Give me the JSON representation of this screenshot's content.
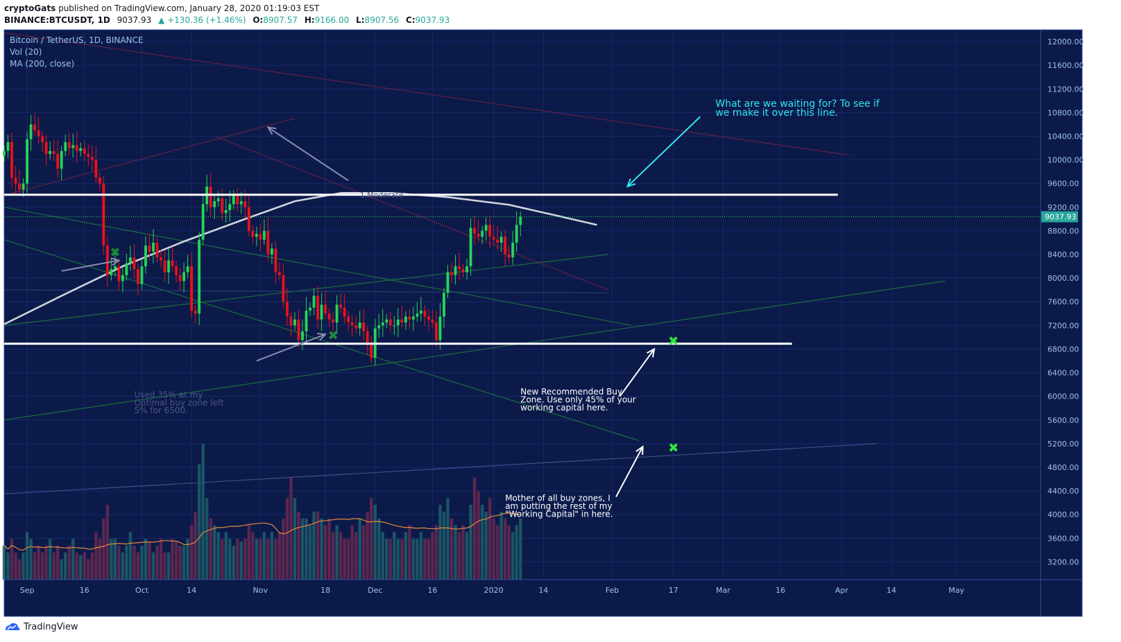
{
  "header": {
    "author": "cryptoGats",
    "published": "published on TradingView.com, January 28, 2020 01:19:03 EST",
    "symbol": "BINANCE:BTCUSDT, 1D",
    "last": "9037.93",
    "change": "▲ +130.36 (+1.46%)",
    "o_label": "O:",
    "o_value": "8907.57",
    "h_label": "H:",
    "h_value": "9166.00",
    "l_label": "L:",
    "l_value": "8907.56",
    "c_label": "C:",
    "c_value": "9037.93"
  },
  "legend": {
    "main": "Bitcoin / TetherUS, 1D, BINANCE",
    "vol": "Vol (20)",
    "ma": "MA (200, close)"
  },
  "footer": {
    "brand": "TradingView"
  },
  "colors": {
    "background": "#0c1a4a",
    "up": "#26d458",
    "down": "#e8121c",
    "white_line": "#ffffff",
    "ma": "#d0d4dc",
    "vol_ma": "#e88a3a",
    "cyan": "#33e6ee",
    "green_x": "#2ee83a",
    "axis_text": "#9ec2ee"
  },
  "chart_data": {
    "type": "candlestick",
    "y_axis": {
      "min": 2900,
      "max": 12200,
      "ticks": [
        3200,
        3600,
        4000,
        4400,
        4800,
        5200,
        5600,
        6000,
        6400,
        6800,
        7200,
        7600,
        8000,
        8400,
        8800,
        9200,
        9600,
        10000,
        10400,
        10800,
        11200,
        11600,
        12000
      ]
    },
    "x_axis": {
      "date_min": "2019-08-26",
      "date_max": "2020-05-23",
      "ticks": [
        {
          "label": "Sep",
          "date": "2019-09-01"
        },
        {
          "label": "16",
          "date": "2019-09-16"
        },
        {
          "label": "Oct",
          "date": "2019-10-01"
        },
        {
          "label": "14",
          "date": "2019-10-14"
        },
        {
          "label": "Nov",
          "date": "2019-11-01"
        },
        {
          "label": "18",
          "date": "2019-11-18"
        },
        {
          "label": "Dec",
          "date": "2019-12-01"
        },
        {
          "label": "16",
          "date": "2019-12-16"
        },
        {
          "label": "2020",
          "date": "2020-01-01"
        },
        {
          "label": "14",
          "date": "2020-01-14"
        },
        {
          "label": "Feb",
          "date": "2020-02-01"
        },
        {
          "label": "17",
          "date": "2020-02-17"
        },
        {
          "label": "Mar",
          "date": "2020-03-01"
        },
        {
          "label": "16",
          "date": "2020-03-16"
        },
        {
          "label": "Apr",
          "date": "2020-04-01"
        },
        {
          "label": "14",
          "date": "2020-04-14"
        },
        {
          "label": "May",
          "date": "2020-05-01"
        }
      ]
    },
    "last_price": 9037.93,
    "last_price_label": "9037.93",
    "series_start": "2019-08-26",
    "closes": [
      10150,
      10300,
      9700,
      9600,
      9500,
      9600,
      10350,
      10600,
      10500,
      10400,
      10300,
      10100,
      10150,
      10100,
      9850,
      10150,
      10300,
      10200,
      10250,
      10150,
      10200,
      10100,
      10050,
      10000,
      9700,
      9600,
      8550,
      8050,
      8150,
      8200,
      7950,
      8050,
      8250,
      8350,
      8150,
      7900,
      8200,
      8550,
      8450,
      8600,
      8350,
      8300,
      8100,
      8300,
      8200,
      8050,
      7950,
      8100,
      8200,
      7450,
      7400,
      8650,
      9250,
      9550,
      9200,
      9300,
      9350,
      9100,
      9150,
      9250,
      9400,
      9250,
      9300,
      9200,
      8800,
      8700,
      8750,
      8650,
      8800,
      8400,
      8500,
      8100,
      8050,
      7600,
      7350,
      7200,
      7300,
      6950,
      7100,
      7450,
      7500,
      7700,
      7300,
      7550,
      7400,
      7300,
      7250,
      7550,
      7500,
      7350,
      7250,
      7200,
      7150,
      7250,
      7100,
      6900,
      6650,
      7150,
      7200,
      7250,
      7300,
      7200,
      7200,
      7300,
      7250,
      7350,
      7300,
      7350,
      7400,
      7450,
      7350,
      7300,
      7250,
      6950,
      7350,
      7750,
      8100,
      8050,
      8200,
      8150,
      8100,
      8200,
      8850,
      8750,
      8700,
      8800,
      8900,
      8700,
      8650,
      8600,
      8700,
      8400,
      8350,
      8600,
      8900,
      9037.93
    ],
    "volume_relative": [
      0.25,
      0.2,
      0.3,
      0.2,
      0.15,
      0.2,
      0.35,
      0.3,
      0.2,
      0.25,
      0.2,
      0.25,
      0.3,
      0.2,
      0.25,
      0.15,
      0.2,
      0.25,
      0.3,
      0.2,
      0.18,
      0.2,
      0.15,
      0.2,
      0.35,
      0.3,
      0.45,
      0.55,
      0.3,
      0.3,
      0.25,
      0.2,
      0.25,
      0.35,
      0.25,
      0.2,
      0.25,
      0.3,
      0.28,
      0.2,
      0.25,
      0.3,
      0.2,
      0.2,
      0.3,
      0.28,
      0.25,
      0.25,
      0.3,
      0.4,
      0.5,
      0.85,
      1.0,
      0.6,
      0.45,
      0.4,
      0.35,
      0.3,
      0.35,
      0.3,
      0.25,
      0.3,
      0.28,
      0.3,
      0.4,
      0.35,
      0.3,
      0.3,
      0.35,
      0.3,
      0.35,
      0.3,
      0.35,
      0.45,
      0.6,
      0.75,
      0.6,
      0.5,
      0.45,
      0.45,
      0.4,
      0.5,
      0.5,
      0.45,
      0.4,
      0.45,
      0.35,
      0.4,
      0.35,
      0.3,
      0.3,
      0.4,
      0.35,
      0.45,
      0.4,
      0.5,
      0.6,
      0.55,
      0.45,
      0.35,
      0.3,
      0.3,
      0.35,
      0.3,
      0.3,
      0.35,
      0.4,
      0.3,
      0.3,
      0.35,
      0.3,
      0.3,
      0.35,
      0.4,
      0.55,
      0.5,
      0.6,
      0.45,
      0.4,
      0.35,
      0.4,
      0.35,
      0.55,
      0.75,
      0.65,
      0.55,
      0.5,
      0.6,
      0.45,
      0.4,
      0.5,
      0.45,
      0.4,
      0.35,
      0.4,
      0.45
    ],
    "ma200": [
      [
        "2019-08-26",
        7220
      ],
      [
        "2019-09-10",
        7700
      ],
      [
        "2019-09-26",
        8200
      ],
      [
        "2019-10-12",
        8620
      ],
      [
        "2019-10-28",
        9000
      ],
      [
        "2019-11-10",
        9300
      ],
      [
        "2019-11-22",
        9440
      ],
      [
        "2019-12-05",
        9440
      ],
      [
        "2019-12-20",
        9370
      ],
      [
        "2020-01-05",
        9240
      ],
      [
        "2020-01-18",
        9050
      ],
      [
        "2020-01-28",
        8900
      ]
    ],
    "horizontal_lines": [
      {
        "price": 9410,
        "from": "2019-08-26",
        "to": "2020-03-31"
      },
      {
        "price": 6890,
        "from": "2019-08-26",
        "to": "2020-03-19"
      }
    ],
    "trend_lines": [
      {
        "from": [
          "2019-08-26",
          7200
        ],
        "to": [
          "2020-01-31",
          8400
        ],
        "color": "#1f8a3a"
      },
      {
        "from": [
          "2019-08-26",
          5600
        ],
        "to": [
          "2020-04-28",
          7950
        ],
        "color": "#1f8a3a"
      },
      {
        "from": [
          "2019-08-26",
          4350
        ],
        "to": [
          "2020-04-10",
          5200
        ],
        "color": "#5060a0"
      },
      {
        "from": [
          "2019-08-26",
          8650
        ],
        "to": [
          "2020-02-08",
          5250
        ],
        "color": "#1f8a3a"
      },
      {
        "from": [
          "2019-08-26",
          9200
        ],
        "to": [
          "2020-02-06",
          7200
        ],
        "color": "#1f8a3a"
      },
      {
        "from": [
          "2019-08-26",
          12150
        ],
        "to": [
          "2020-04-03",
          10080
        ],
        "color": "#7a2440"
      },
      {
        "from": [
          "2019-08-26",
          9400
        ],
        "to": [
          "2019-11-10",
          10700
        ],
        "color": "#7a2440"
      },
      {
        "from": [
          "2019-10-20",
          10400
        ],
        "to": [
          "2020-01-31",
          7800
        ],
        "color": "#7a2440"
      },
      {
        "from": [
          "2019-08-26",
          7800
        ],
        "to": [
          "2020-01-31",
          7750
        ],
        "color": "#2a4a7a"
      }
    ],
    "arrows": [
      {
        "from": [
          "2019-09-10",
          8120
        ],
        "to": [
          "2019-09-25",
          8300
        ],
        "color": "#8890b0"
      },
      {
        "from": [
          "2019-10-31",
          6600
        ],
        "to": [
          "2019-11-18",
          7050
        ],
        "color": "#8890b0"
      },
      {
        "from": [
          "2019-11-24",
          9650
        ],
        "to": [
          "2019-11-03",
          10550
        ],
        "color": "#8890b0"
      },
      {
        "from": [
          "2020-02-24",
          10730
        ],
        "to": [
          "2020-02-05",
          9550
        ],
        "color": "#33e6ee"
      },
      {
        "from": [
          "2020-02-03",
          6000
        ],
        "to": [
          "2020-02-12",
          6800
        ],
        "color": "#ffffff"
      },
      {
        "from": [
          "2020-02-02",
          4300
        ],
        "to": [
          "2020-02-09",
          5150
        ],
        "color": "#ffffff"
      }
    ],
    "markers": [
      {
        "date": "2020-02-17",
        "price": 6930,
        "label": "✖",
        "color": "#2ee83a"
      },
      {
        "date": "2020-02-17",
        "price": 5120,
        "label": "✖",
        "color": "#2ee83a"
      },
      {
        "date": "2019-11-20",
        "price": 7020,
        "label": "✖",
        "color": "#1f8a3a"
      },
      {
        "date": "2019-09-24",
        "price": 8430,
        "label": "✖",
        "color": "#1f8a3a"
      }
    ],
    "annotations": [
      {
        "lines": [
          "What are we waiting for? To see if",
          "we make it over this line."
        ],
        "date": "2020-02-28",
        "price": 10900,
        "color": "#33e6ee",
        "size": 14
      },
      {
        "lines": [
          "New Recommended Buy",
          "Zone. Use only 45% of your",
          "working capital here."
        ],
        "date": "2020-01-08",
        "price": 6030,
        "color": "#ffffff",
        "size": 12
      },
      {
        "lines": [
          "Mother of all buy zones, I",
          "am putting the rest of my",
          "\"Working Capital\" in here."
        ],
        "date": "2020-01-04",
        "price": 4230,
        "color": "#ffffff",
        "size": 12
      },
      {
        "lines": [
          "Used 35% at my",
          "Optimal buy zone left",
          "5% for 6500."
        ],
        "date": "2019-09-29",
        "price": 5980,
        "color": "#4a5680",
        "size": 12
      },
      {
        "lines": [
          "1.Moderate"
        ],
        "date": "2019-11-27",
        "price": 9360,
        "color": "#4a5680",
        "size": 11
      }
    ]
  }
}
